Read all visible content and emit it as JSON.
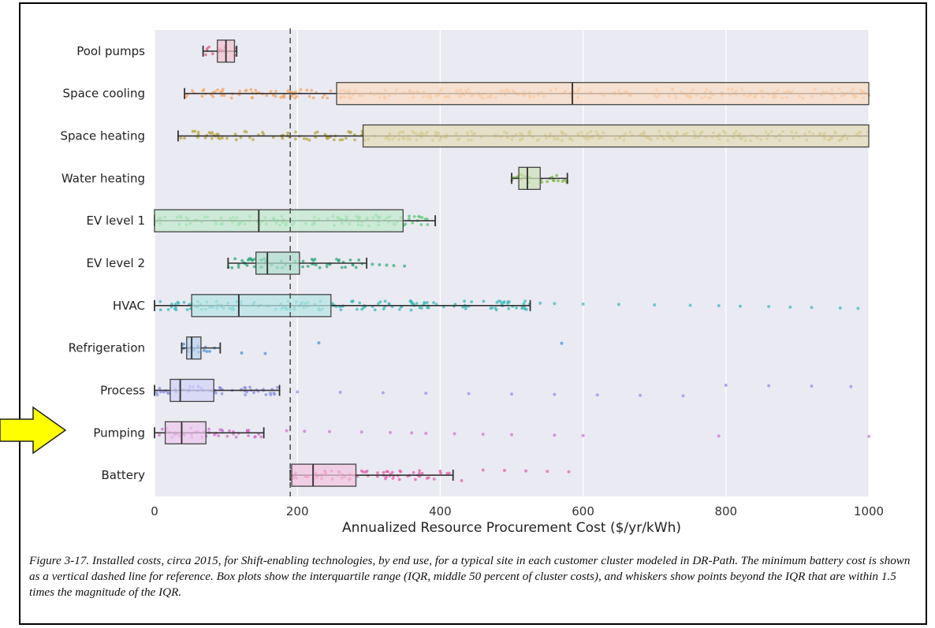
{
  "chart_data": {
    "type": "box",
    "title": "",
    "xlabel": "Annualized Resource Procurement Cost ($/yr/kWh)",
    "ylabel": "",
    "xlim": [
      0,
      1000
    ],
    "xticks": [
      0,
      200,
      400,
      600,
      800,
      1000
    ],
    "grid": true,
    "reference_line": {
      "x": 190,
      "style": "dashed",
      "meaning": "minimum battery cost"
    },
    "categories": [
      "Pool pumps",
      "Space cooling",
      "Space heating",
      "Water heating",
      "EV level 1",
      "EV level 2",
      "HVAC",
      "Refrigeration",
      "Process",
      "Pumping",
      "Battery"
    ],
    "series": [
      {
        "name": "Pool pumps",
        "whisker_low": 68,
        "q1": 88,
        "median": 100,
        "q3": 112,
        "whisker_high": 115,
        "color": "#e0607e",
        "outliers": []
      },
      {
        "name": "Space cooling",
        "whisker_low": 42,
        "q1": 255,
        "median": 585,
        "q3": 1000,
        "whisker_high": 1000,
        "color": "#f4a460",
        "outliers": []
      },
      {
        "name": "Space heating",
        "whisker_low": 33,
        "q1": 292,
        "median": 1000,
        "q3": 1000,
        "whisker_high": 1000,
        "color": "#b5a642",
        "outliers": []
      },
      {
        "name": "Water heating",
        "whisker_low": 500,
        "q1": 510,
        "median": 522,
        "q3": 540,
        "whisker_high": 578,
        "color": "#7cb342",
        "outliers": []
      },
      {
        "name": "EV level 1",
        "whisker_low": 0,
        "q1": 0,
        "median": 146,
        "q3": 348,
        "whisker_high": 393,
        "color": "#5cc878",
        "outliers": [
          290,
          300,
          310
        ]
      },
      {
        "name": "EV level 2",
        "whisker_low": 103,
        "q1": 142,
        "median": 158,
        "q3": 203,
        "whisker_high": 297,
        "color": "#2ca87a",
        "outliers": [
          305,
          315,
          325,
          335,
          350
        ]
      },
      {
        "name": "HVAC",
        "whisker_low": 0,
        "q1": 52,
        "median": 118,
        "q3": 247,
        "whisker_high": 526,
        "color": "#3cb8b8",
        "outliers": [
          540,
          560,
          600,
          650,
          700,
          750,
          790,
          820,
          860,
          890,
          920,
          960,
          985
        ]
      },
      {
        "name": "Refrigeration",
        "whisker_low": 38,
        "q1": 45,
        "median": 52,
        "q3": 65,
        "whisker_high": 92,
        "color": "#4a8fd0",
        "outliers": [
          122,
          155,
          230,
          570
        ]
      },
      {
        "name": "Process",
        "whisker_low": 0,
        "q1": 22,
        "median": 36,
        "q3": 83,
        "whisker_high": 175,
        "color": "#8a8ee8",
        "outliers": [
          200,
          260,
          320,
          380,
          440,
          500,
          560,
          620,
          680,
          740,
          800,
          860,
          920,
          975
        ]
      },
      {
        "name": "Pumping",
        "whisker_low": 0,
        "q1": 15,
        "median": 38,
        "q3": 72,
        "whisker_high": 153,
        "color": "#d070d0",
        "outliers": [
          185,
          210,
          245,
          290,
          330,
          360,
          380,
          420,
          460,
          500,
          560,
          600,
          790,
          1000
        ]
      },
      {
        "name": "Battery",
        "whisker_low": 190,
        "q1": 192,
        "median": 222,
        "q3": 282,
        "whisker_high": 418,
        "color": "#e060a8",
        "outliers": [
          430,
          460,
          490,
          520,
          550,
          580
        ]
      }
    ]
  },
  "caption": "Figure 3-17. Installed costs, circa 2015, for Shift-enabling technologies, by end use, for a typical site in each customer cluster modeled in DR-Path. The minimum battery cost is shown as a vertical dashed line for reference. Box plots show the interquartile range (IQR, middle 50 percent of cluster costs), and whiskers show points beyond the IQR that are within 1.5 times the magnitude of the IQR.",
  "annotation_arrow": {
    "color": "#ffff00",
    "points_to": "Pumping"
  }
}
